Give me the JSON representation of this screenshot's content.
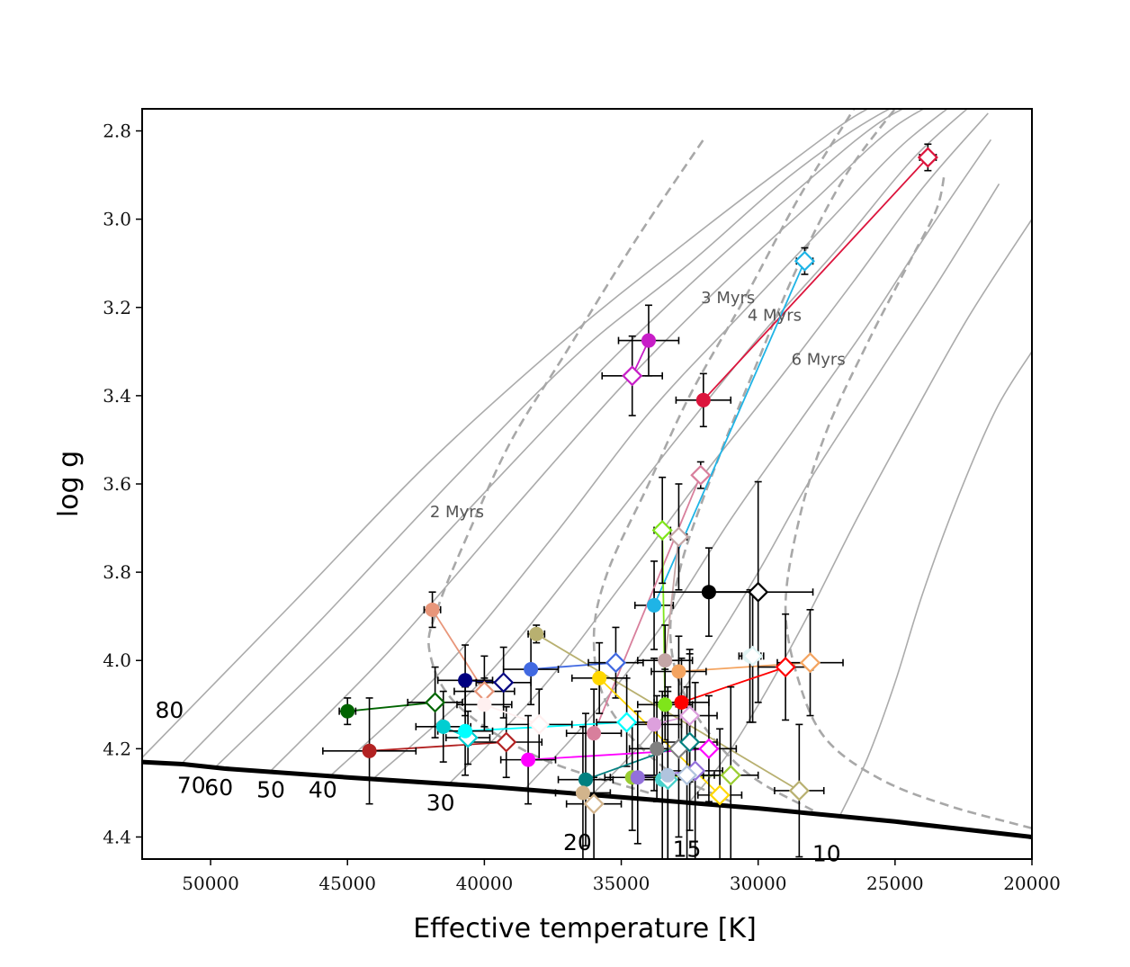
{
  "chart_data": {
    "type": "scatter",
    "title": "",
    "xlabel": "Effective temperature [K]",
    "ylabel": "log g",
    "xlim": [
      52500,
      20000
    ],
    "ylim": [
      4.45,
      2.75
    ],
    "x_ticks": [
      50000,
      45000,
      40000,
      35000,
      30000,
      25000,
      20000
    ],
    "x_tick_labels": [
      "50000",
      "45000",
      "40000",
      "35000",
      "30000",
      "25000",
      "20000"
    ],
    "y_ticks": [
      2.8,
      3.0,
      3.2,
      3.4,
      3.6,
      3.8,
      4.0,
      4.2,
      4.4
    ],
    "y_tick_labels": [
      "2.8",
      "3.0",
      "3.2",
      "3.4",
      "3.6",
      "3.8",
      "4.0",
      "4.2",
      "4.4"
    ],
    "grid": false,
    "legend": "none",
    "zams": {
      "x": [
        52500,
        51000,
        49500,
        45000,
        40000,
        35000,
        30000,
        25000,
        20000
      ],
      "y": [
        4.23,
        4.235,
        4.245,
        4.265,
        4.285,
        4.31,
        4.335,
        4.365,
        4.4
      ]
    },
    "tracks": [
      {
        "mass": "80",
        "x": [
          52500,
          47000,
          42000,
          37000,
          33000,
          29000,
          26000,
          23500
        ],
        "y": [
          4.22,
          3.87,
          3.55,
          3.27,
          3.07,
          2.88,
          2.75,
          2.7
        ]
      },
      {
        "mass": "70",
        "x": [
          51000,
          46000,
          41000,
          36500,
          32500,
          28800,
          25500,
          23000
        ],
        "y": [
          4.23,
          3.91,
          3.58,
          3.3,
          3.1,
          2.9,
          2.76,
          2.7
        ]
      },
      {
        "mass": "60",
        "x": [
          49800,
          45000,
          40000,
          35700,
          32000,
          28500,
          25300,
          22600
        ],
        "y": [
          4.24,
          3.95,
          3.62,
          3.34,
          3.12,
          2.93,
          2.77,
          2.7
        ]
      },
      {
        "mass": "50",
        "x": [
          47800,
          43500,
          39000,
          35000,
          31500,
          28000,
          25000,
          22300
        ],
        "y": [
          4.25,
          3.98,
          3.66,
          3.38,
          3.16,
          2.96,
          2.79,
          2.7
        ]
      },
      {
        "mass": "40",
        "x": [
          45600,
          41500,
          37500,
          34000,
          30700,
          27500,
          24700,
          22000
        ],
        "y": [
          4.26,
          4.02,
          3.72,
          3.44,
          3.22,
          3.01,
          2.83,
          2.7
        ]
      },
      {
        "mass": "",
        "x": [
          44000,
          40000,
          36300,
          33000,
          30000,
          27000,
          24300,
          21800
        ],
        "y": [
          4.265,
          4.04,
          3.76,
          3.5,
          3.27,
          3.06,
          2.86,
          2.72
        ]
      },
      {
        "mass": "30",
        "x": [
          41300,
          38000,
          35000,
          32000,
          29200,
          26500,
          24000,
          21600
        ],
        "y": [
          4.28,
          4.07,
          3.83,
          3.58,
          3.36,
          3.14,
          2.93,
          2.76
        ]
      },
      {
        "mass": "",
        "x": [
          38500,
          36000,
          33500,
          31000,
          28500,
          26000,
          23700,
          21500
        ],
        "y": [
          4.29,
          4.12,
          3.92,
          3.68,
          3.46,
          3.24,
          3.02,
          2.82
        ]
      },
      {
        "mass": "20",
        "x": [
          36000,
          34000,
          32000,
          30000,
          28000,
          25600,
          23300,
          21200
        ],
        "y": [
          4.3,
          4.17,
          4.0,
          3.8,
          3.58,
          3.35,
          3.13,
          2.92
        ]
      },
      {
        "mass": "15",
        "x": [
          32500,
          31200,
          29800,
          28200,
          26400,
          24300,
          22300,
          20000
        ],
        "y": [
          4.32,
          4.22,
          4.08,
          3.9,
          3.68,
          3.44,
          3.22,
          3.0
        ]
      },
      {
        "mass": "10",
        "x": [
          27000,
          26000,
          25000,
          24000,
          22700,
          21300,
          20000
        ],
        "y": [
          4.35,
          4.22,
          4.05,
          3.85,
          3.63,
          3.43,
          3.3
        ]
      }
    ],
    "isochrones": [
      {
        "label": "2 Myrs",
        "x": [
          34000,
          38000,
          41000,
          42000,
          41700,
          40500,
          39000,
          37000,
          34500,
          32000
        ],
        "y": [
          4.3,
          4.22,
          4.1,
          3.98,
          3.88,
          3.7,
          3.5,
          3.3,
          3.05,
          2.82
        ]
      },
      {
        "label": "3 Myrs",
        "x": [
          31000,
          33500,
          35500,
          36000,
          35500,
          34000,
          32500,
          30500,
          28500,
          26500
        ],
        "y": [
          4.32,
          4.24,
          4.1,
          3.95,
          3.8,
          3.6,
          3.4,
          3.18,
          2.95,
          2.75
        ]
      },
      {
        "label": "4 Myrs",
        "x": [
          28000,
          30500,
          32500,
          33200,
          32800,
          31500,
          30000,
          28500,
          26800,
          25000
        ],
        "y": [
          4.34,
          4.25,
          4.1,
          3.95,
          3.78,
          3.55,
          3.32,
          3.1,
          2.9,
          2.75
        ]
      },
      {
        "label": "6 Myrs",
        "x": [
          20000,
          23000,
          25500,
          27500,
          28500,
          29000,
          28500,
          27500,
          26000,
          24500,
          23500,
          23200
        ],
        "y": [
          4.38,
          4.33,
          4.27,
          4.18,
          4.05,
          3.88,
          3.68,
          3.48,
          3.28,
          3.1,
          2.98,
          2.9
        ]
      }
    ],
    "series": [
      {
        "color": "#dc143c",
        "points": [
          {
            "x": 32000,
            "y": 3.41,
            "xerr": 1000,
            "yerr": 0.06,
            "marker": "filled"
          },
          {
            "x": 23800,
            "y": 2.86,
            "xerr": 300,
            "yerr": 0.03,
            "marker": "open"
          }
        ]
      },
      {
        "color": "#1fb4e6",
        "points": [
          {
            "x": 33800,
            "y": 3.875,
            "xerr": 700,
            "yerr": 0.1,
            "marker": "filled"
          },
          {
            "x": 28300,
            "y": 3.095,
            "xerr": 300,
            "yerr": 0.03,
            "marker": "open"
          }
        ]
      },
      {
        "color": "#c71ec7",
        "points": [
          {
            "x": 34000,
            "y": 3.275,
            "xerr": 1100,
            "yerr": 0.08,
            "marker": "filled"
          },
          {
            "x": 34600,
            "y": 3.355,
            "xerr": 1100,
            "yerr": 0.09,
            "marker": "open"
          }
        ]
      },
      {
        "color": "#d87f9c",
        "points": [
          {
            "x": 36000,
            "y": 4.165,
            "xerr": 1000,
            "yerr": 0.1,
            "marker": "filled"
          },
          {
            "x": 32100,
            "y": 3.58,
            "xerr": 200,
            "yerr": 0.03,
            "marker": "open"
          }
        ]
      },
      {
        "color": "#7fe51a",
        "points": [
          {
            "x": 33400,
            "y": 4.1,
            "xerr": 1000,
            "yerr": 0.08,
            "marker": "filled"
          },
          {
            "x": 33500,
            "y": 3.705,
            "xerr": 300,
            "yerr": 0.12,
            "marker": "open"
          }
        ]
      },
      {
        "color": "#c4a6a6",
        "points": [
          {
            "x": 33400,
            "y": 4.0,
            "xerr": 1000,
            "yerr": 0.08,
            "marker": "filled"
          },
          {
            "x": 32900,
            "y": 3.72,
            "xerr": 300,
            "yerr": 0.12,
            "marker": "open"
          }
        ]
      },
      {
        "color": "#000000",
        "points": [
          {
            "x": 31800,
            "y": 3.845,
            "xerr": 2000,
            "yerr": 0.1,
            "marker": "filled"
          },
          {
            "x": 30000,
            "y": 3.845,
            "xerr": 2000,
            "yerr": 0.25,
            "marker": "open"
          }
        ]
      },
      {
        "color": "#e8967a",
        "points": [
          {
            "x": 41900,
            "y": 3.885,
            "xerr": 300,
            "yerr": 0.04,
            "marker": "filled"
          },
          {
            "x": 40000,
            "y": 4.07,
            "xerr": 1100,
            "yerr": 0.08,
            "marker": "open"
          }
        ]
      },
      {
        "color": "#b8b070",
        "points": [
          {
            "x": 38100,
            "y": 3.94,
            "xerr": 300,
            "yerr": 0.02,
            "marker": "filled"
          },
          {
            "x": 28500,
            "y": 4.295,
            "xerr": 900,
            "yerr": 0.15,
            "marker": "open"
          }
        ]
      },
      {
        "color": "#4169e1",
        "points": [
          {
            "x": 38300,
            "y": 4.02,
            "xerr": 1000,
            "yerr": 0.08,
            "marker": "filled"
          },
          {
            "x": 35200,
            "y": 4.005,
            "xerr": 1000,
            "yerr": 0.08,
            "marker": "open"
          }
        ]
      },
      {
        "color": "#ffd700",
        "points": [
          {
            "x": 35800,
            "y": 4.04,
            "xerr": 1000,
            "yerr": 0.08,
            "marker": "filled"
          },
          {
            "x": 31400,
            "y": 4.305,
            "xerr": 800,
            "yerr": 0.15,
            "marker": "open"
          }
        ]
      },
      {
        "color": "#000080",
        "points": [
          {
            "x": 40700,
            "y": 4.045,
            "xerr": 1000,
            "yerr": 0.08,
            "marker": "filled"
          },
          {
            "x": 39300,
            "y": 4.05,
            "xerr": 1000,
            "yerr": 0.08,
            "marker": "open"
          }
        ]
      },
      {
        "color": "#f4a460",
        "points": [
          {
            "x": 32900,
            "y": 4.025,
            "xerr": 1000,
            "yerr": 0.08,
            "marker": "filled"
          },
          {
            "x": 28100,
            "y": 4.005,
            "xerr": 1200,
            "yerr": 0.12,
            "marker": "open"
          }
        ]
      },
      {
        "color": "#e0f5f5",
        "points": [
          {
            "x": 30300,
            "y": 3.99,
            "xerr": 400,
            "yerr": 0.15,
            "marker": "filled"
          },
          {
            "x": 30200,
            "y": 3.99,
            "xerr": 400,
            "yerr": 0.15,
            "marker": "open"
          }
        ]
      },
      {
        "color": "#ff0000",
        "points": [
          {
            "x": 32800,
            "y": 4.095,
            "xerr": 1000,
            "yerr": 0.1,
            "marker": "filled"
          },
          {
            "x": 29000,
            "y": 4.015,
            "xerr": 1000,
            "yerr": 0.12,
            "marker": "open"
          }
        ]
      },
      {
        "color": "#006400",
        "points": [
          {
            "x": 45000,
            "y": 4.115,
            "xerr": 300,
            "yerr": 0.03,
            "marker": "filled"
          },
          {
            "x": 41800,
            "y": 4.095,
            "xerr": 1000,
            "yerr": 0.08,
            "marker": "open"
          }
        ]
      },
      {
        "color": "#b22222",
        "points": [
          {
            "x": 44200,
            "y": 4.205,
            "xerr": 1700,
            "yerr": 0.12,
            "marker": "filled"
          },
          {
            "x": 39200,
            "y": 4.185,
            "xerr": 1300,
            "yerr": 0.08,
            "marker": "open"
          }
        ]
      },
      {
        "color": "#00ced1",
        "points": [
          {
            "x": 41500,
            "y": 4.15,
            "xerr": 1000,
            "yerr": 0.08,
            "marker": "filled"
          },
          {
            "x": 40600,
            "y": 4.175,
            "xerr": 800,
            "yerr": 0.06,
            "marker": "open"
          }
        ]
      },
      {
        "color": "#00ffff",
        "points": [
          {
            "x": 40700,
            "y": 4.16,
            "xerr": 1000,
            "yerr": 0.1,
            "marker": "filled"
          },
          {
            "x": 34800,
            "y": 4.14,
            "xerr": 1100,
            "yerr": 0.1,
            "marker": "open"
          }
        ]
      },
      {
        "color": "#fff0f0",
        "points": [
          {
            "x": 40000,
            "y": 4.1,
            "xerr": 1000,
            "yerr": 0.06,
            "marker": "filled"
          },
          {
            "x": 38000,
            "y": 4.145,
            "xerr": 1200,
            "yerr": 0.08,
            "marker": "open"
          }
        ]
      },
      {
        "color": "#ff00ff",
        "points": [
          {
            "x": 38400,
            "y": 4.225,
            "xerr": 1000,
            "yerr": 0.1,
            "marker": "filled"
          },
          {
            "x": 31800,
            "y": 4.2,
            "xerr": 1000,
            "yerr": 0.12,
            "marker": "open"
          }
        ]
      },
      {
        "color": "#dda0dd",
        "points": [
          {
            "x": 33800,
            "y": 4.145,
            "xerr": 1000,
            "yerr": 0.15,
            "marker": "filled"
          },
          {
            "x": 32500,
            "y": 4.125,
            "xerr": 1000,
            "yerr": 0.15,
            "marker": "open"
          }
        ]
      },
      {
        "color": "#808080",
        "points": [
          {
            "x": 33700,
            "y": 4.2,
            "xerr": 1000,
            "yerr": 0.12,
            "marker": "filled"
          },
          {
            "x": 32900,
            "y": 4.2,
            "xerr": 1000,
            "yerr": 0.2,
            "marker": "open"
          }
        ]
      },
      {
        "color": "#008080",
        "points": [
          {
            "x": 36300,
            "y": 4.27,
            "xerr": 1000,
            "yerr": 0.15,
            "marker": "filled"
          },
          {
            "x": 32500,
            "y": 4.185,
            "xerr": 1000,
            "yerr": 0.2,
            "marker": "open"
          }
        ]
      },
      {
        "color": "#9acd32",
        "points": [
          {
            "x": 34600,
            "y": 4.265,
            "xerr": 1000,
            "yerr": 0.12,
            "marker": "filled"
          },
          {
            "x": 31000,
            "y": 4.26,
            "xerr": 1000,
            "yerr": 0.2,
            "marker": "open"
          }
        ]
      },
      {
        "color": "#9370db",
        "points": [
          {
            "x": 34400,
            "y": 4.265,
            "xerr": 1000,
            "yerr": 0.15,
            "marker": "filled"
          },
          {
            "x": 32300,
            "y": 4.25,
            "xerr": 1000,
            "yerr": 0.2,
            "marker": "open"
          }
        ]
      },
      {
        "color": "#48d1cc",
        "points": [
          {
            "x": 33500,
            "y": 4.27,
            "xerr": 1000,
            "yerr": 0.2,
            "marker": "filled"
          },
          {
            "x": 33300,
            "y": 4.27,
            "xerr": 1000,
            "yerr": 0.2,
            "marker": "open"
          }
        ]
      },
      {
        "color": "#b0c4de",
        "points": [
          {
            "x": 33300,
            "y": 4.26,
            "xerr": 1000,
            "yerr": 0.2,
            "marker": "filled"
          },
          {
            "x": 32600,
            "y": 4.26,
            "xerr": 1000,
            "yerr": 0.2,
            "marker": "open"
          }
        ]
      },
      {
        "color": "#d2b48c",
        "points": [
          {
            "x": 36400,
            "y": 4.3,
            "xerr": 1000,
            "yerr": 0.15,
            "marker": "filled"
          },
          {
            "x": 36000,
            "y": 4.325,
            "xerr": 1000,
            "yerr": 0.15,
            "marker": "open"
          }
        ]
      }
    ],
    "mass_labels": [
      {
        "text": "80",
        "x": 51500,
        "y": 4.13
      },
      {
        "text": "70",
        "x": 50700,
        "y": 4.3
      },
      {
        "text": "60",
        "x": 49700,
        "y": 4.305
      },
      {
        "text": "50",
        "x": 47800,
        "y": 4.31
      },
      {
        "text": "40",
        "x": 45900,
        "y": 4.31
      },
      {
        "text": "30",
        "x": 41600,
        "y": 4.34
      },
      {
        "text": "20",
        "x": 36600,
        "y": 4.43
      },
      {
        "text": "15",
        "x": 32600,
        "y": 4.445
      },
      {
        "text": "10",
        "x": 27500,
        "y": 4.455
      }
    ],
    "isochrone_labels": [
      {
        "text": "2 Myrs",
        "x": 41000,
        "y": 3.675
      },
      {
        "text": "3 Myrs",
        "x": 31100,
        "y": 3.19
      },
      {
        "text": "4 Myrs",
        "x": 29400,
        "y": 3.23
      },
      {
        "text": "6 Myrs",
        "x": 27800,
        "y": 3.33
      }
    ]
  }
}
